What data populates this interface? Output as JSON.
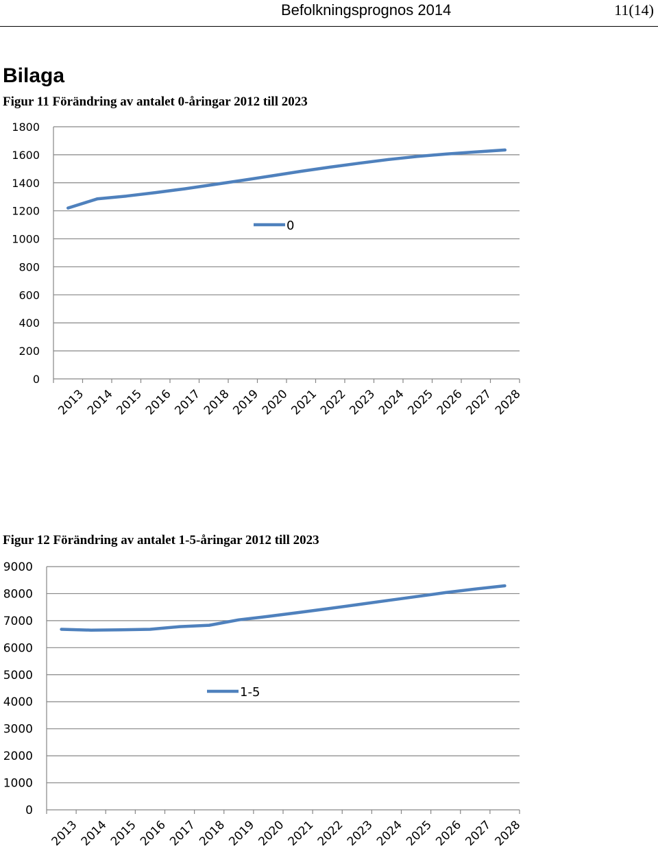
{
  "header": {
    "title": "Befolkningsprognos 2014",
    "page_number": "11(14)"
  },
  "section": {
    "heading": "Bilaga"
  },
  "figures": [
    {
      "caption": "Figur 11 Förändring av antalet 0-åringar 2012 till 2023"
    },
    {
      "caption": "Figur 12 Förändring av antalet 1-5-åringar 2012 till 2023"
    }
  ],
  "chart_data": [
    {
      "type": "line",
      "title": "",
      "xlabel": "",
      "ylabel": "",
      "categories": [
        "2013",
        "2014",
        "2015",
        "2016",
        "2017",
        "2018",
        "2019",
        "2020",
        "2021",
        "2022",
        "2023",
        "2024",
        "2025",
        "2026",
        "2027",
        "2028"
      ],
      "ylim": [
        0,
        1800
      ],
      "yticks": [
        0,
        200,
        400,
        600,
        800,
        1000,
        1200,
        1400,
        1600,
        1800
      ],
      "grid": true,
      "legend_position": "center",
      "color": "#4f81bd",
      "series": [
        {
          "name": "0",
          "values": [
            1220,
            1285,
            1305,
            1330,
            1357,
            1387,
            1418,
            1450,
            1482,
            1512,
            1540,
            1566,
            1588,
            1606,
            1620,
            1634
          ]
        }
      ]
    },
    {
      "type": "line",
      "title": "",
      "xlabel": "",
      "ylabel": "",
      "categories": [
        "2013",
        "2014",
        "2015",
        "2016",
        "2017",
        "2018",
        "2019",
        "2020",
        "2021",
        "2022",
        "2023",
        "2024",
        "2025",
        "2026",
        "2027",
        "2028"
      ],
      "ylim": [
        0,
        9000
      ],
      "yticks": [
        0,
        1000,
        2000,
        3000,
        4000,
        5000,
        6000,
        7000,
        8000,
        9000
      ],
      "grid": true,
      "legend_position": "center",
      "color": "#4f81bd",
      "series": [
        {
          "name": "1-5",
          "values": [
            6680,
            6650,
            6660,
            6680,
            6780,
            6830,
            7030,
            7160,
            7300,
            7440,
            7590,
            7740,
            7890,
            8040,
            8170,
            8290
          ]
        }
      ]
    }
  ]
}
